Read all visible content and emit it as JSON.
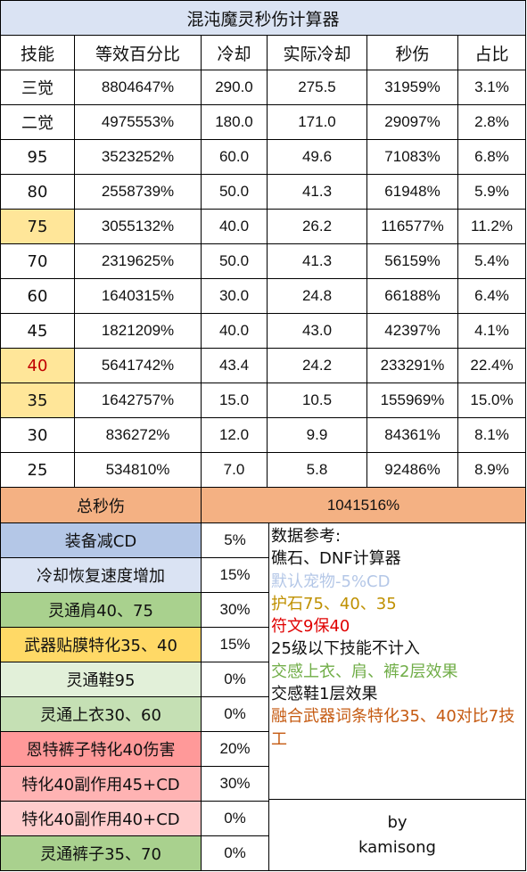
{
  "title": "混沌魔灵秒伤计算器",
  "columns": [
    "技能",
    "等效百分比",
    "冷却",
    "实际冷却",
    "秒伤",
    "占比"
  ],
  "rows": [
    {
      "skill": "三觉",
      "pct": "8804647%",
      "cd": "290.0",
      "real_cd": "275.5",
      "dps": "31959%",
      "share": "3.1%"
    },
    {
      "skill": "二觉",
      "pct": "4975553%",
      "cd": "180.0",
      "real_cd": "171.0",
      "dps": "29097%",
      "share": "2.8%"
    },
    {
      "skill": "95",
      "pct": "3523252%",
      "cd": "60.0",
      "real_cd": "49.6",
      "dps": "71083%",
      "share": "6.8%"
    },
    {
      "skill": "80",
      "pct": "2558739%",
      "cd": "50.0",
      "real_cd": "41.3",
      "dps": "61948%",
      "share": "5.9%"
    },
    {
      "skill": "75",
      "pct": "3055132%",
      "cd": "40.0",
      "real_cd": "26.2",
      "dps": "116577%",
      "share": "11.2%"
    },
    {
      "skill": "70",
      "pct": "2319625%",
      "cd": "50.0",
      "real_cd": "41.3",
      "dps": "56159%",
      "share": "5.4%"
    },
    {
      "skill": "60",
      "pct": "1640315%",
      "cd": "30.0",
      "real_cd": "24.8",
      "dps": "66188%",
      "share": "6.4%"
    },
    {
      "skill": "45",
      "pct": "1821209%",
      "cd": "40.0",
      "real_cd": "43.0",
      "dps": "42397%",
      "share": "4.1%"
    },
    {
      "skill": "40",
      "pct": "5641742%",
      "cd": "43.4",
      "real_cd": "24.2",
      "dps": "233291%",
      "share": "22.4%"
    },
    {
      "skill": "35",
      "pct": "1642757%",
      "cd": "15.0",
      "real_cd": "10.5",
      "dps": "155969%",
      "share": "15.0%"
    },
    {
      "skill": "30",
      "pct": "836272%",
      "cd": "12.0",
      "real_cd": "9.9",
      "dps": "84361%",
      "share": "8.1%"
    },
    {
      "skill": "25",
      "pct": "534810%",
      "cd": "7.0",
      "real_cd": "5.8",
      "dps": "92486%",
      "share": "8.9%"
    }
  ],
  "highlighted_skills": [
    "75",
    "40",
    "35"
  ],
  "total": {
    "label": "总秒伤",
    "value": "1041516%"
  },
  "modifiers": [
    {
      "label": "装备减CD",
      "value": "5%"
    },
    {
      "label": "冷却恢复速度增加",
      "value": "15%"
    },
    {
      "label": "灵通肩40、75",
      "value": "30%"
    },
    {
      "label": "武器贴膜特化35、40",
      "value": "15%"
    },
    {
      "label": "灵通鞋95",
      "value": "0%"
    },
    {
      "label": "灵通上衣30、60",
      "value": "0%"
    },
    {
      "label": "恩特裤子特化40伤害",
      "value": "20%"
    },
    {
      "label": "特化40副作用45+CD",
      "value": "30%"
    },
    {
      "label": "特化40副作用40+CD",
      "value": "0%"
    },
    {
      "label": "灵通裤子35、70",
      "value": "0%"
    }
  ],
  "notes": [
    {
      "text": "数据参考:",
      "color": "#111111"
    },
    {
      "text": "礁石、DNF计算器",
      "color": "#111111"
    },
    {
      "text": "默认宠物-5%CD",
      "color": "#b4c7e7"
    },
    {
      "text": "护石75、40、35",
      "color": "#bf9000"
    },
    {
      "text": "符文9保40",
      "color": "#e00000"
    },
    {
      "text": "25级以下技能不计入",
      "color": "#111111"
    },
    {
      "text": "交感上衣、肩、裤2层效果",
      "color": "#70ad47"
    },
    {
      "text": "交感鞋1层效果",
      "color": "#111111"
    },
    {
      "text": "融合武器词条特化35、40对比7技工",
      "color": "#c55a11"
    }
  ],
  "signature": {
    "line1": "by",
    "line2": "kamisong"
  },
  "colors": {
    "header_bg": "#dae3f3",
    "highlight_bg": "#ffe699",
    "red_text": "#c00000",
    "total_bg": "#f4b183",
    "modifier_bg": [
      "#b4c7e7",
      "#dae3f3",
      "#a9d18e",
      "#ffd966",
      "#e2f0d9",
      "#c5e0b4",
      "#ff9999",
      "#ffb3b3",
      "#ffcccc",
      "#a9d18e"
    ]
  }
}
